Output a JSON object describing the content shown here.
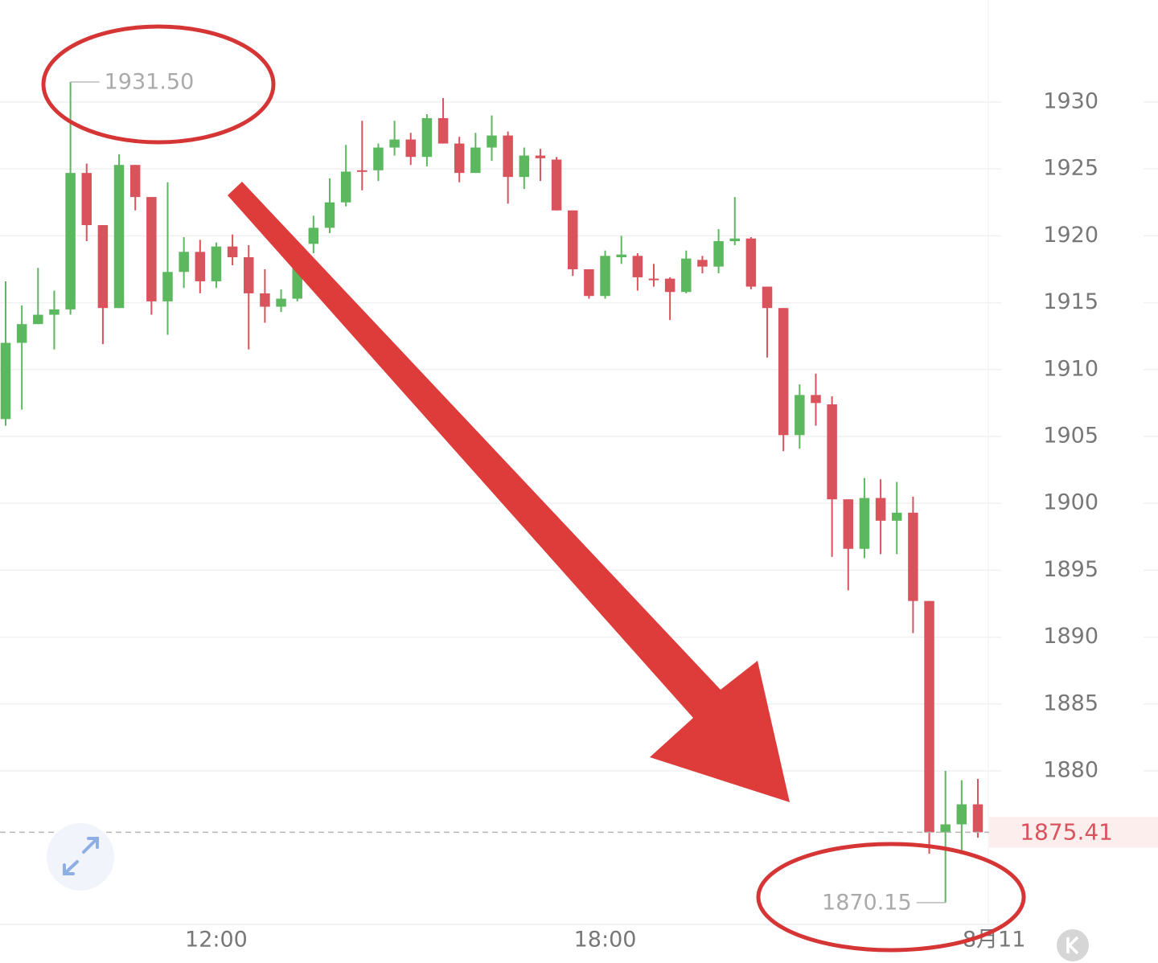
{
  "chart_data": {
    "type": "candlestick",
    "x": [
      8.75,
      9,
      9.25,
      9.5,
      9.75,
      10,
      10.25,
      10.5,
      10.75,
      11,
      11.25,
      11.5,
      11.75,
      12,
      12.25,
      12.5,
      12.75,
      13,
      13.25,
      13.5,
      13.75,
      14,
      14.25,
      14.5,
      14.75,
      15,
      15.25,
      15.5,
      15.75,
      16,
      16.25,
      16.5,
      16.75,
      17,
      17.25,
      17.5,
      17.75,
      18,
      18.25,
      18.5,
      18.75,
      19,
      19.25,
      19.5,
      19.75,
      20,
      20.25,
      20.5,
      20.75,
      21,
      21.25,
      21.5,
      21.75,
      22,
      22.25,
      22.5,
      22.75,
      23,
      23.25,
      23.5,
      23.75
    ],
    "open": [
      1906.3,
      1912.0,
      1913.4,
      1914.1,
      1914.5,
      1924.7,
      1920.8,
      1914.6,
      1925.3,
      1922.9,
      1915.1,
      1917.3,
      1918.8,
      1916.6,
      1919.2,
      1918.4,
      1915.7,
      1914.7,
      1915.3,
      1919.4,
      1920.6,
      1922.5,
      1924.9,
      1924.9,
      1926.6,
      1927.2,
      1925.9,
      1928.8,
      1926.9,
      1924.7,
      1926.6,
      1927.5,
      1924.4,
      1926.0,
      1925.7,
      1921.9,
      1917.5,
      1915.5,
      1918.4,
      1918.5,
      1916.8,
      1916.8,
      1915.8,
      1918.2,
      1917.7,
      1919.6,
      1919.8,
      1916.2,
      1914.6,
      1905.1,
      1908.1,
      1907.4,
      1900.3,
      1896.6,
      1900.4,
      1898.7,
      1899.3,
      1892.7,
      1875.4,
      1876.0,
      1877.5
    ],
    "high": [
      1916.6,
      1914.8,
      1917.6,
      1915.9,
      1931.5,
      1925.4,
      1920.8,
      1926.1,
      1925.3,
      1922.9,
      1924.0,
      1919.9,
      1919.7,
      1919.5,
      1920.1,
      1919.3,
      1917.5,
      1916.0,
      1918.4,
      1921.5,
      1924.3,
      1926.8,
      1928.6,
      1926.9,
      1928.6,
      1927.7,
      1929.1,
      1930.3,
      1927.4,
      1927.7,
      1929.0,
      1927.8,
      1926.6,
      1926.5,
      1925.9,
      1921.9,
      1917.5,
      1918.9,
      1920.0,
      1918.7,
      1917.9,
      1916.9,
      1918.9,
      1918.5,
      1920.5,
      1922.9,
      1919.9,
      1916.2,
      1914.6,
      1908.9,
      1909.7,
      1908.0,
      1900.3,
      1901.9,
      1901.8,
      1901.6,
      1900.5,
      1892.7,
      1880.0,
      1879.3,
      1879.4
    ],
    "low": [
      1905.8,
      1907.0,
      1913.4,
      1911.5,
      1914.1,
      1919.6,
      1911.9,
      1914.6,
      1921.9,
      1914.1,
      1912.6,
      1916.1,
      1915.7,
      1916.1,
      1917.8,
      1911.5,
      1913.5,
      1914.3,
      1915.1,
      1918.7,
      1920.2,
      1922.2,
      1923.4,
      1924.1,
      1926.0,
      1925.3,
      1925.2,
      1926.9,
      1924.0,
      1924.7,
      1925.6,
      1922.4,
      1923.5,
      1924.1,
      1921.9,
      1917.0,
      1915.3,
      1915.3,
      1917.9,
      1915.9,
      1916.2,
      1913.7,
      1915.7,
      1917.2,
      1917.2,
      1919.3,
      1916.0,
      1910.9,
      1903.9,
      1904.1,
      1905.8,
      1896.0,
      1893.5,
      1895.9,
      1896.2,
      1896.2,
      1890.3,
      1873.8,
      1870.15,
      1873.9,
      1875.0
    ],
    "close": [
      1912.0,
      1913.4,
      1914.1,
      1914.5,
      1924.7,
      1920.8,
      1914.6,
      1925.3,
      1922.9,
      1915.1,
      1917.3,
      1918.8,
      1916.6,
      1919.2,
      1918.4,
      1915.7,
      1914.7,
      1915.3,
      1918.1,
      1920.6,
      1922.5,
      1924.8,
      1924.8,
      1926.6,
      1927.2,
      1925.9,
      1928.8,
      1926.9,
      1924.7,
      1926.6,
      1927.5,
      1924.4,
      1926.0,
      1925.8,
      1921.9,
      1917.5,
      1915.5,
      1918.5,
      1918.6,
      1916.9,
      1916.7,
      1915.8,
      1918.3,
      1917.7,
      1919.6,
      1919.8,
      1916.2,
      1914.6,
      1905.1,
      1908.1,
      1907.5,
      1900.3,
      1896.6,
      1900.4,
      1898.7,
      1899.3,
      1892.7,
      1875.4,
      1876.0,
      1877.5,
      1875.41
    ],
    "up_color": "#5cb85f",
    "down_color": "#d9535d",
    "xlim": [
      8.663,
      24.11
    ],
    "xticks": [
      {
        "value": 12,
        "label": "12:00"
      },
      {
        "value": 18,
        "label": "18:00"
      },
      {
        "value": 24,
        "label": "8月11"
      }
    ],
    "ylim": [
      1868.52,
      1937.63
    ],
    "yticks": [
      1880,
      1885,
      1890,
      1895,
      1900,
      1905,
      1910,
      1915,
      1920,
      1925,
      1930
    ],
    "grid": true,
    "last_price": 1875.41,
    "annotations": [
      {
        "x": 9.75,
        "value": 1931.5,
        "label": "1931.50"
      },
      {
        "x": 23.25,
        "value": 1870.15,
        "label": "1870.15"
      }
    ]
  }
}
